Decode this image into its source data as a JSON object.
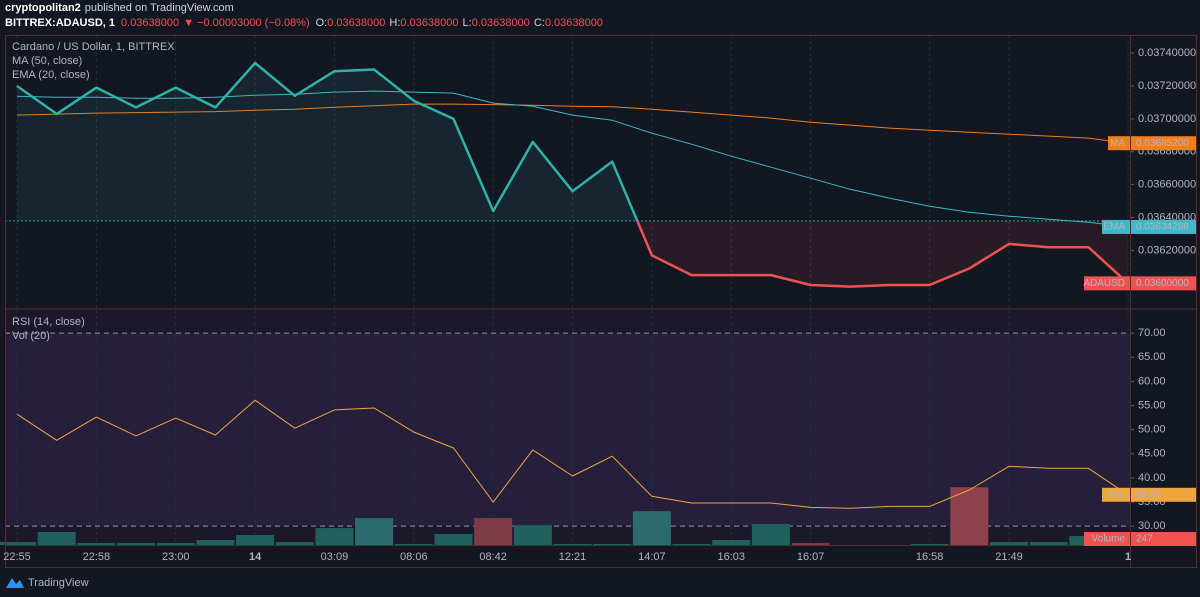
{
  "header": {
    "user": "cryptopolitan2",
    "published": "published on TradingView.com",
    "symbol": "BITTREX:ADAUSD, 1",
    "price": "0.03638000",
    "change": "▼ −0.00003000 (−0.08%)",
    "ohlc": [
      {
        "label": "O:",
        "value": "0.03638000"
      },
      {
        "label": "H:",
        "value": "0.03638000"
      },
      {
        "label": "L:",
        "value": "0.03638000"
      },
      {
        "label": "C:",
        "value": "0.03638000"
      }
    ]
  },
  "footer": {
    "brand": "TradingView"
  },
  "chart_data": [
    {
      "type": "line",
      "title": "Cardano / US Dollar, 1, BITTREX",
      "grid": "vertical",
      "categories": [
        "22:55",
        null,
        "22:58",
        null,
        "23:00",
        null,
        "14",
        null,
        "03:09",
        null,
        "08:06",
        null,
        "08:42",
        null,
        "12:21",
        null,
        "14:07",
        null,
        "16:03",
        null,
        "16:07",
        null,
        null,
        "16:58",
        null,
        "21:49",
        null,
        null,
        "1"
      ],
      "ylim": [
        0.03585,
        0.03751
      ],
      "yticks": [
        {
          "value": 0.0374,
          "label": "0.03740000"
        },
        {
          "value": 0.0372,
          "label": "0.03720000"
        },
        {
          "value": 0.037,
          "label": "0.03700000"
        },
        {
          "value": 0.0368,
          "label": "0.03680000"
        },
        {
          "value": 0.0366,
          "label": "0.03660000"
        },
        {
          "value": 0.0364,
          "label": "0.03640000"
        },
        {
          "value": 0.0362,
          "label": "0.03620000"
        },
        {
          "value": 0.036,
          "label": "0.03600000"
        }
      ],
      "baseline": 0.03638,
      "series": [
        {
          "name": "MA",
          "label": "MA (50, close)",
          "color": "#f07e1d",
          "last_label": "0.03685200",
          "values": [
            0.037023,
            0.037029,
            0.037035,
            0.037038,
            0.037041,
            0.037044,
            0.037053,
            0.037059,
            0.037071,
            0.03708,
            0.03709,
            0.03709,
            0.037087,
            0.037083,
            0.037077,
            0.037074,
            0.037059,
            0.037041,
            0.037023,
            0.037005,
            0.03698,
            0.036962,
            0.036944,
            0.036931,
            0.036919,
            0.036907,
            0.036895,
            0.036883,
            0.036852
          ]
        },
        {
          "name": "EMA",
          "label": "EMA (20, close)",
          "color": "#3fb9c9",
          "last_label": "0.03634288",
          "values": [
            0.037138,
            0.037132,
            0.037132,
            0.037126,
            0.037126,
            0.037132,
            0.037144,
            0.03715,
            0.037163,
            0.037169,
            0.037163,
            0.037157,
            0.037096,
            0.037077,
            0.037023,
            0.036992,
            0.036913,
            0.036846,
            0.036773,
            0.036706,
            0.036639,
            0.036572,
            0.036517,
            0.036469,
            0.036432,
            0.036408,
            0.03639,
            0.036371,
            0.03634288
          ]
        },
        {
          "name": "ADAUSD",
          "color": "#2fb2aa",
          "below_color": "#ef5350",
          "last_label": "0.03600000",
          "values": [
            0.0372,
            0.03703,
            0.03719,
            0.03707,
            0.03719,
            0.03707,
            0.03734,
            0.03714,
            0.03729,
            0.0373,
            0.03711,
            0.037,
            0.03644,
            0.03686,
            0.03656,
            0.03674,
            0.03617,
            0.03605,
            0.03605,
            0.03605,
            0.03599,
            0.03598,
            0.03599,
            0.03599,
            0.03609,
            0.03624,
            0.03622,
            0.03622,
            0.036
          ]
        }
      ]
    },
    {
      "type": "line",
      "grid": "vertical",
      "ylim": [
        26.1,
        74.8
      ],
      "yticks": [
        {
          "value": 70,
          "label": "70.00"
        },
        {
          "value": 65,
          "label": "65.00"
        },
        {
          "value": 60,
          "label": "60.00"
        },
        {
          "value": 55,
          "label": "55.00"
        },
        {
          "value": 50,
          "label": "50.00"
        },
        {
          "value": 45,
          "label": "45.00"
        },
        {
          "value": 40,
          "label": "40.00"
        },
        {
          "value": 35,
          "label": "35.00"
        },
        {
          "value": 30,
          "label": "30.00"
        }
      ],
      "bands": [
        70,
        30
      ],
      "y2lim": [
        0,
        25000
      ],
      "series": [
        {
          "name": "Volume",
          "label": "Vol (20)",
          "type": "bar",
          "axis": "y2",
          "color": "#ef5350",
          "last_label": "247",
          "colors": [
            "#22605d",
            "#22605d",
            "#22605d",
            "#22605d",
            "#22605d",
            "#22605d",
            "#22605d",
            "#22605d",
            "#22605d",
            "#2b6b70",
            "#22605d",
            "#22605d",
            "#7d3b47",
            "#22605d",
            "#22605d",
            "#22605d",
            "#2b6b70",
            "#22605d",
            "#22605d",
            "#22605d",
            "#7d3b47",
            "#22605d",
            "#22605d",
            "#22605d",
            "#8f404d",
            "#22605d",
            "#22605d",
            "#22605d",
            "#7d3b47"
          ],
          "values": [
            320,
            1380,
            210,
            210,
            210,
            530,
            1060,
            320,
            1800,
            2860,
            110,
            1170,
            2860,
            2120,
            110,
            110,
            3600,
            110,
            530,
            2230,
            210,
            0,
            0,
            110,
            6150,
            320,
            320,
            950,
            247
          ]
        },
        {
          "name": "RSI",
          "label": "RSI (14, close)",
          "color": "#f0a640",
          "last_label": "36.51",
          "values": [
            53.2,
            47.8,
            52.6,
            48.7,
            52.4,
            48.9,
            56.1,
            50.3,
            54.1,
            54.5,
            49.5,
            46.2,
            35.0,
            45.8,
            40.4,
            44.5,
            36.2,
            34.8,
            34.8,
            34.8,
            33.9,
            33.7,
            34.1,
            34.1,
            37.5,
            42.4,
            42.0,
            42.0,
            36.51
          ]
        }
      ]
    }
  ]
}
